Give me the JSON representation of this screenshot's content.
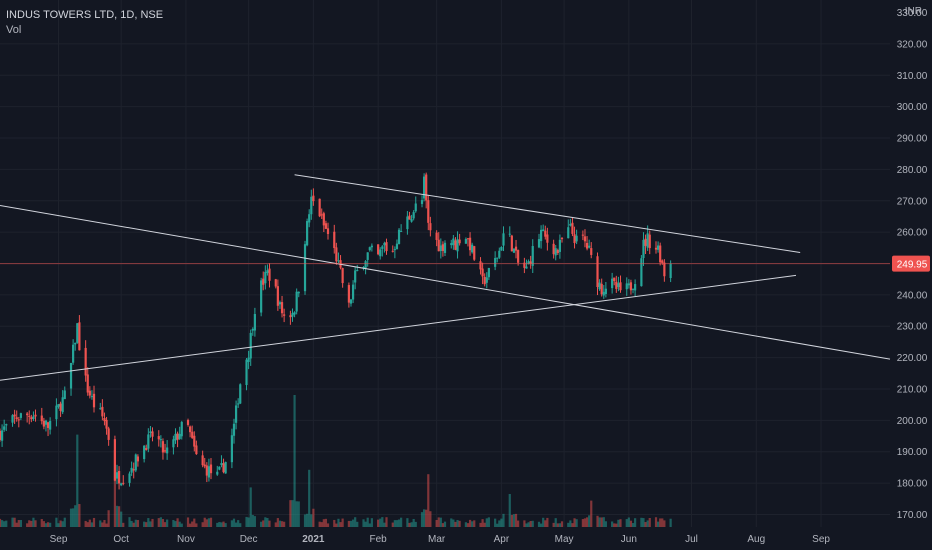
{
  "chart_data": {
    "type": "candlestick",
    "symbol_title": "INDUS TOWERS LTD, 1D, NSE",
    "volume_label": "Vol",
    "currency": "INR",
    "last_price": "249.95",
    "y_ticks": [
      "320.00",
      "310.00",
      "300.00",
      "290.00",
      "280.00",
      "270.00",
      "260.00",
      "250.00",
      "240.00",
      "230.00",
      "220.00",
      "210.00",
      "200.00",
      "190.00",
      "180.00",
      "170.00"
    ],
    "y_top_partial": "330.00",
    "ylim": [
      166,
      334
    ],
    "x_ticks": [
      "Sep",
      "Oct",
      "Nov",
      "Dec",
      "2021",
      "Feb",
      "Mar",
      "Apr",
      "May",
      "Jun",
      "Jul",
      "Aug",
      "Sep"
    ],
    "x_tick_dates": [
      "2020-09-01",
      "2020-10-01",
      "2020-11-01",
      "2020-12-01",
      "2021-01-01",
      "2021-02-01",
      "2021-03-01",
      "2021-04-01",
      "2021-05-01",
      "2021-06-01",
      "2021-07-01",
      "2021-08-01",
      "2021-09-01"
    ],
    "xlim": [
      "2020-08-04",
      "2021-10-04"
    ],
    "trendlines": [
      {
        "name": "upper",
        "from": [
          "2020-12-23",
          278.3
        ],
        "to": [
          "2021-08-22",
          253.5
        ]
      },
      {
        "name": "descending",
        "from": [
          "2020-08-04",
          268.5
        ],
        "to": [
          "2021-10-04",
          219.5
        ]
      },
      {
        "name": "rising",
        "from": [
          "2020-08-04",
          212.8
        ],
        "to": [
          "2021-08-20",
          246.2
        ]
      }
    ],
    "price_anchors": [
      [
        "2020-08-04",
        196
      ],
      [
        "2020-08-12",
        201
      ],
      [
        "2020-08-20",
        202
      ],
      [
        "2020-08-27",
        198
      ],
      [
        "2020-09-01",
        204
      ],
      [
        "2020-09-05",
        209
      ],
      [
        "2020-09-08",
        222
      ],
      [
        "2020-09-10",
        230
      ],
      [
        "2020-09-12",
        218
      ],
      [
        "2020-09-15",
        210
      ],
      [
        "2020-09-18",
        205
      ],
      [
        "2020-09-23",
        200
      ],
      [
        "2020-09-26",
        192
      ],
      [
        "2020-09-28",
        182
      ],
      [
        "2020-10-02",
        182
      ],
      [
        "2020-10-07",
        186
      ],
      [
        "2020-10-12",
        192
      ],
      [
        "2020-10-17",
        196
      ],
      [
        "2020-10-22",
        189
      ],
      [
        "2020-10-27",
        194
      ],
      [
        "2020-11-01",
        200
      ],
      [
        "2020-11-04",
        193
      ],
      [
        "2020-11-07",
        186
      ],
      [
        "2020-11-12",
        184
      ],
      [
        "2020-11-16",
        182
      ],
      [
        "2020-11-21",
        188
      ],
      [
        "2020-11-24",
        198
      ],
      [
        "2020-11-27",
        212
      ],
      [
        "2020-11-29",
        218
      ],
      [
        "2020-12-01",
        222
      ],
      [
        "2020-12-04",
        236
      ],
      [
        "2020-12-07",
        243
      ],
      [
        "2020-12-10",
        247
      ],
      [
        "2020-12-13",
        244
      ],
      [
        "2020-12-16",
        236
      ],
      [
        "2020-12-19",
        232
      ],
      [
        "2020-12-23",
        236
      ],
      [
        "2020-12-26",
        246
      ],
      [
        "2020-12-28",
        258
      ],
      [
        "2020-12-31",
        270
      ],
      [
        "2021-01-03",
        268
      ],
      [
        "2021-01-06",
        262
      ],
      [
        "2021-01-09",
        258
      ],
      [
        "2021-01-12",
        252
      ],
      [
        "2021-01-15",
        244
      ],
      [
        "2021-01-18",
        236
      ],
      [
        "2021-01-21",
        246
      ],
      [
        "2021-01-25",
        251
      ],
      [
        "2021-01-28",
        254
      ],
      [
        "2021-02-01",
        252
      ],
      [
        "2021-02-04",
        256
      ],
      [
        "2021-02-07",
        252
      ],
      [
        "2021-02-10",
        258
      ],
      [
        "2021-02-13",
        262
      ],
      [
        "2021-02-16",
        265
      ],
      [
        "2021-02-19",
        268
      ],
      [
        "2021-02-22",
        270
      ],
      [
        "2021-02-23",
        276
      ],
      [
        "2021-02-25",
        262
      ],
      [
        "2021-02-28",
        258
      ],
      [
        "2021-03-03",
        255
      ],
      [
        "2021-03-06",
        258
      ],
      [
        "2021-03-10",
        256
      ],
      [
        "2021-03-14",
        260
      ],
      [
        "2021-03-17",
        256
      ],
      [
        "2021-03-20",
        250
      ],
      [
        "2021-03-23",
        244
      ],
      [
        "2021-03-27",
        248
      ],
      [
        "2021-03-31",
        254
      ],
      [
        "2021-04-03",
        262
      ],
      [
        "2021-04-06",
        256
      ],
      [
        "2021-04-09",
        250
      ],
      [
        "2021-04-13",
        248
      ],
      [
        "2021-04-16",
        254
      ],
      [
        "2021-04-20",
        260
      ],
      [
        "2021-04-24",
        256
      ],
      [
        "2021-04-28",
        254
      ],
      [
        "2021-05-01",
        259
      ],
      [
        "2021-05-04",
        261
      ],
      [
        "2021-05-07",
        257
      ],
      [
        "2021-05-10",
        258
      ],
      [
        "2021-05-13",
        254
      ],
      [
        "2021-05-16",
        246
      ],
      [
        "2021-05-19",
        242
      ],
      [
        "2021-05-23",
        244
      ],
      [
        "2021-05-26",
        242
      ],
      [
        "2021-05-29",
        241
      ],
      [
        "2021-06-01",
        242
      ],
      [
        "2021-06-03",
        244
      ],
      [
        "2021-06-05",
        247
      ],
      [
        "2021-06-08",
        256
      ],
      [
        "2021-06-10",
        258
      ],
      [
        "2021-06-13",
        255
      ],
      [
        "2021-06-15",
        255
      ],
      [
        "2021-06-17",
        250
      ],
      [
        "2021-06-19",
        244
      ],
      [
        "2021-06-21",
        250
      ]
    ],
    "volume_spikes": [
      [
        "2020-09-10",
        0.42
      ],
      [
        "2020-09-28",
        0.35
      ],
      [
        "2020-12-02",
        0.18
      ],
      [
        "2020-12-23",
        0.6
      ],
      [
        "2020-12-30",
        0.26
      ],
      [
        "2021-02-25",
        0.24
      ],
      [
        "2021-04-05",
        0.15
      ],
      [
        "2021-05-14",
        0.12
      ]
    ]
  }
}
